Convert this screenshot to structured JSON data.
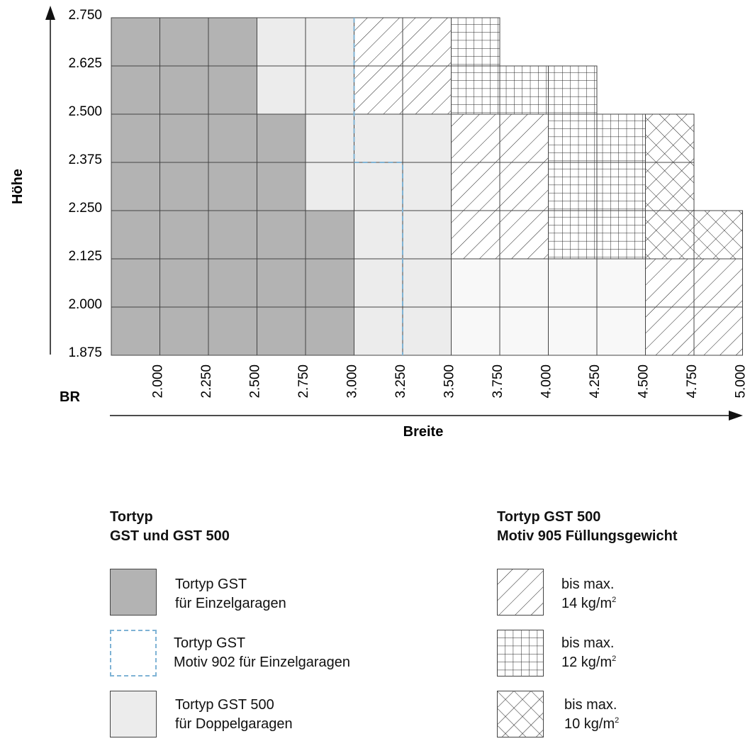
{
  "chart_data": {
    "type": "heatmap",
    "ylabel": "Höhe",
    "xlabel": "Breite",
    "x_prefix_label": "BR",
    "x_ticks": [
      "2.000",
      "2.250",
      "2.500",
      "2.750",
      "3.000",
      "3.250",
      "3.500",
      "3.750",
      "4.000",
      "4.250",
      "4.500",
      "4.750",
      "5.000"
    ],
    "y_ticks": [
      "2.750",
      "2.625",
      "2.500",
      "2.375",
      "2.250",
      "2.125",
      "2.000",
      "1.875"
    ],
    "rows_top_to_bottom": [
      [
        "gst",
        "gst",
        "gst",
        "gst500",
        "gst500",
        "h14",
        "h14",
        "g12"
      ],
      [
        "gst",
        "gst",
        "gst",
        "gst500",
        "gst500",
        "h14",
        "h14",
        "g12",
        "g12",
        "g12"
      ],
      [
        "gst",
        "gst",
        "gst",
        "gst",
        "gst500",
        "gst500",
        "gst500",
        "h14",
        "h14",
        "g12",
        "g12",
        "x10"
      ],
      [
        "gst",
        "gst",
        "gst",
        "gst",
        "gst500",
        "gst500",
        "gst500",
        "h14",
        "h14",
        "g12",
        "g12",
        "x10"
      ],
      [
        "gst",
        "gst",
        "gst",
        "gst",
        "gst",
        "gst500",
        "gst500",
        "h14",
        "h14",
        "g12",
        "g12",
        "x10",
        "x10"
      ],
      [
        "gst",
        "gst",
        "gst",
        "gst",
        "gst",
        "gst500",
        "gst500",
        "light",
        "light",
        "light",
        "light",
        "h14",
        "h14"
      ],
      [
        "gst",
        "gst",
        "gst",
        "gst",
        "gst",
        "gst500",
        "gst500",
        "light",
        "light",
        "light",
        "light",
        "h14",
        "h14"
      ]
    ],
    "motiv902_outline": {
      "width_range": [
        "3.000",
        "3.250"
      ],
      "height_range": [
        "1.875",
        "2.750"
      ],
      "step_at_height": "2.375",
      "lower_width": "3.250"
    }
  },
  "legend_left": {
    "title_line1": "Tortyp",
    "title_line2": "GST und GST 500",
    "items": [
      {
        "line1": "Tortyp GST",
        "line2": "für Einzelgaragen"
      },
      {
        "line1": "Tortyp GST",
        "line2": "Motiv 902 für Einzelgaragen"
      },
      {
        "line1": "Tortyp GST 500",
        "line2": "für Doppelgaragen"
      }
    ]
  },
  "legend_right": {
    "title_line1": "Tortyp GST 500",
    "title_line2": "Motiv 905 Füllungsgewicht",
    "items": [
      {
        "line1": "bis max.",
        "value": "14 kg/m",
        "sup": "2"
      },
      {
        "line1": "bis max.",
        "value": "12 kg/m",
        "sup": "2"
      },
      {
        "line1": "bis max.",
        "value": "10 kg/m",
        "sup": "2"
      }
    ]
  },
  "colors": {
    "gst": "#b3b3b3",
    "gst500": "#ececec",
    "light": "#f8f8f8",
    "dashed": "#7fb3d5",
    "grid": "#444444"
  }
}
